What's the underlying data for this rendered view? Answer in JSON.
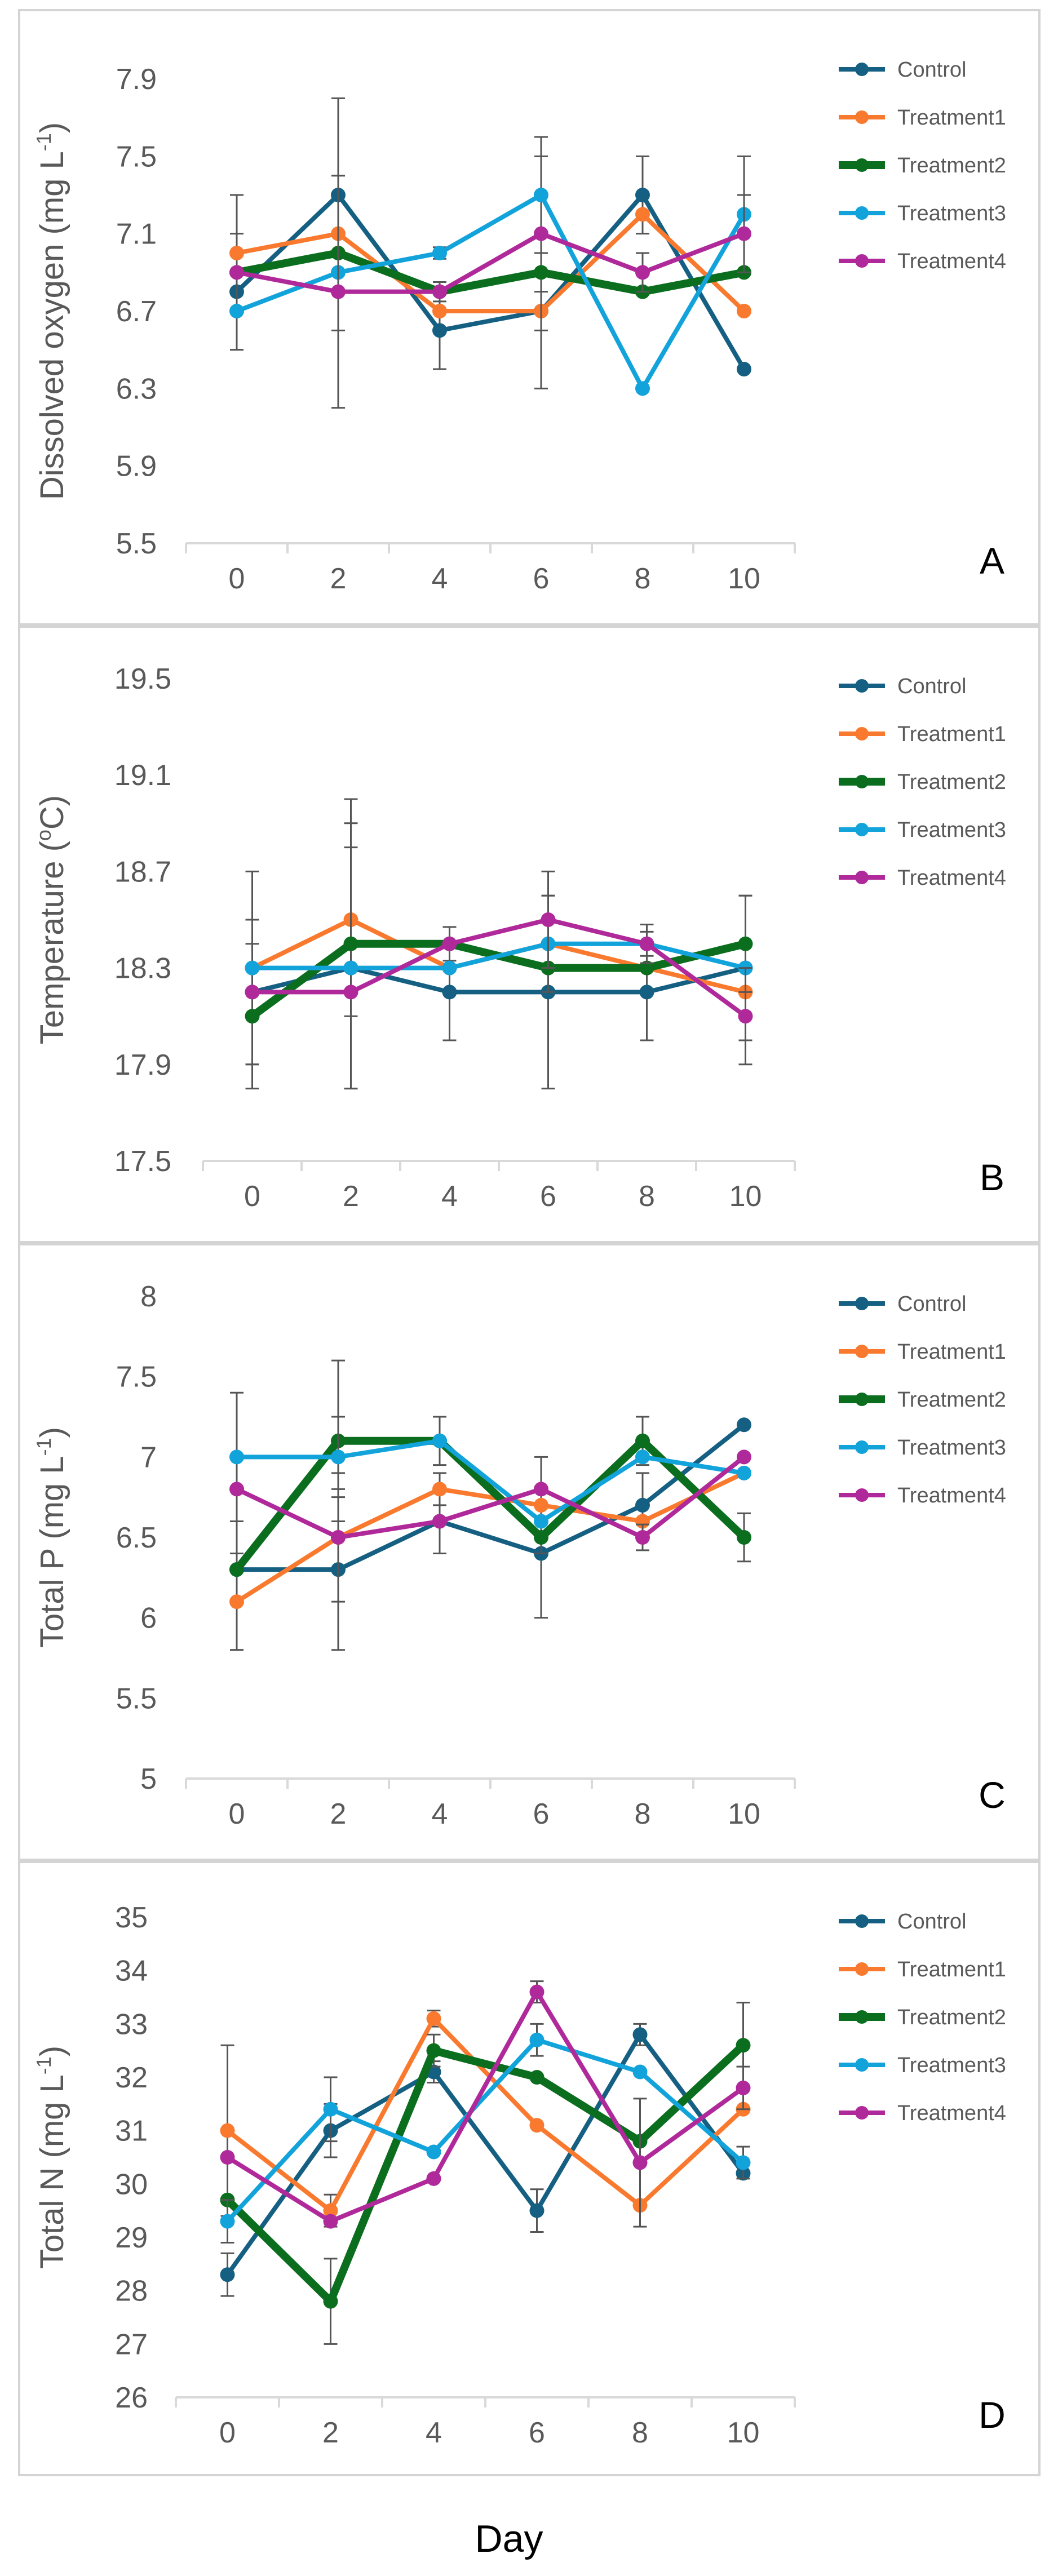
{
  "figure": {
    "xlabel": "Day"
  },
  "colors": {
    "Control": "#156082",
    "Treatment1": "#F97A2E",
    "Treatment2": "#0B6E1E",
    "Treatment3": "#12A3DB",
    "Treatment4": "#B0299A",
    "axis": "#D9D9D9",
    "error_bar": "#555555",
    "frame": "#D4D4D4",
    "text": "#595959"
  },
  "chart_data": [
    {
      "type": "line",
      "panel_letter": "A",
      "ylabel": "Dissolved oxygen (mg L",
      "ylabel_sup": "-1",
      "ylabel_end": ")",
      "x": [
        0,
        2,
        4,
        6,
        8,
        10
      ],
      "x_tick_labels": [
        "0",
        "2",
        "4",
        "6",
        "8",
        "10"
      ],
      "ylim": [
        5.5,
        7.9
      ],
      "y_ticks": [
        5.5,
        5.9,
        6.3,
        6.7,
        7.1,
        7.5,
        7.9
      ],
      "y_tick_labels": [
        "5.5",
        "5.9",
        "6.3",
        "6.7",
        "7.1",
        "7.5",
        "7.9"
      ],
      "legend_position": "right",
      "series": [
        {
          "name": "Control",
          "values": [
            6.8,
            7.3,
            6.6,
            6.7,
            7.3,
            6.4
          ],
          "errors": [
            0.3,
            0.5,
            0.2,
            0.1,
            0.2,
            0
          ]
        },
        {
          "name": "Treatment1",
          "values": [
            7.0,
            7.1,
            6.7,
            6.7,
            7.2,
            6.7
          ],
          "errors": [
            0.3,
            0.3,
            0,
            0,
            0,
            0
          ]
        },
        {
          "name": "Treatment2",
          "values": [
            6.9,
            7.0,
            6.8,
            6.9,
            6.8,
            6.9
          ],
          "errors": [
            0,
            0.4,
            0,
            0.6,
            0,
            0
          ]
        },
        {
          "name": "Treatment3",
          "values": [
            6.7,
            6.9,
            7.0,
            7.3,
            6.3,
            7.2
          ],
          "errors": [
            0.2,
            0,
            0.03,
            0.3,
            0,
            0.3
          ]
        },
        {
          "name": "Treatment4",
          "values": [
            6.9,
            6.8,
            6.8,
            7.1,
            6.9,
            7.1
          ],
          "errors": [
            0,
            0.6,
            0.05,
            0,
            0.1,
            0.2
          ]
        }
      ]
    },
    {
      "type": "line",
      "panel_letter": "B",
      "ylabel": "Temperature (",
      "ylabel_sup": "o",
      "ylabel_end": "C)",
      "x": [
        0,
        2,
        4,
        6,
        8,
        10
      ],
      "x_tick_labels": [
        "0",
        "2",
        "4",
        "6",
        "8",
        "10"
      ],
      "ylim": [
        17.5,
        19.5
      ],
      "y_ticks": [
        17.5,
        17.9,
        18.3,
        18.7,
        19.1,
        19.5
      ],
      "y_tick_labels": [
        "17.5",
        "17.9",
        "18.3",
        "18.7",
        "19.1",
        "19.5"
      ],
      "legend_position": "right",
      "series": [
        {
          "name": "Control",
          "values": [
            18.2,
            18.3,
            18.2,
            18.2,
            18.2,
            18.3
          ],
          "errors": [
            0.3,
            0.5,
            0.2,
            0.4,
            0.2,
            0.3
          ]
        },
        {
          "name": "Treatment1",
          "values": [
            18.3,
            18.5,
            18.3,
            18.4,
            18.3,
            18.2
          ],
          "errors": [
            0.4,
            0.4,
            0,
            0.2,
            0,
            0
          ]
        },
        {
          "name": "Treatment2",
          "values": [
            18.1,
            18.4,
            18.4,
            18.3,
            18.3,
            18.4
          ],
          "errors": [
            0.3,
            0.6,
            0.07,
            0,
            0,
            0.2
          ]
        },
        {
          "name": "Treatment3",
          "values": [
            18.3,
            18.3,
            18.3,
            18.4,
            18.4,
            18.3
          ],
          "errors": [
            0,
            0,
            0,
            0,
            0.05,
            0
          ]
        },
        {
          "name": "Treatment4",
          "values": [
            18.2,
            18.2,
            18.4,
            18.5,
            18.4,
            18.1
          ],
          "errors": [
            0,
            0,
            0,
            0.2,
            0.08,
            0.2
          ]
        }
      ]
    },
    {
      "type": "line",
      "panel_letter": "C",
      "ylabel": "Total P (mg L",
      "ylabel_sup": "-1",
      "ylabel_end": ")",
      "x": [
        0,
        2,
        4,
        6,
        8,
        10
      ],
      "x_tick_labels": [
        "0",
        "2",
        "4",
        "6",
        "8",
        "10"
      ],
      "ylim": [
        5,
        8
      ],
      "y_ticks": [
        5,
        5.5,
        6,
        6.5,
        7,
        7.5,
        8
      ],
      "y_tick_labels": [
        "5",
        "5.5",
        "6",
        "6.5",
        "7",
        "7.5",
        "8"
      ],
      "legend_position": "right",
      "series": [
        {
          "name": "Control",
          "values": [
            6.3,
            6.3,
            6.6,
            6.4,
            6.7,
            7.2
          ],
          "errors": [
            0.5,
            0.5,
            0.2,
            0.4,
            0.2,
            0
          ]
        },
        {
          "name": "Treatment1",
          "values": [
            6.1,
            6.5,
            6.8,
            6.7,
            6.6,
            6.9
          ],
          "errors": [
            0.3,
            0.4,
            0.1,
            0.3,
            0,
            0
          ]
        },
        {
          "name": "Treatment2",
          "values": [
            6.3,
            7.1,
            7.1,
            6.5,
            7.1,
            6.5
          ],
          "errors": [
            0,
            0.5,
            0,
            0,
            0.15,
            0.15
          ]
        },
        {
          "name": "Treatment3",
          "values": [
            7.0,
            7.0,
            7.1,
            6.6,
            7.0,
            6.9
          ],
          "errors": [
            0.4,
            0.25,
            0.15,
            0,
            0,
            0
          ]
        },
        {
          "name": "Treatment4",
          "values": [
            6.8,
            6.5,
            6.6,
            6.8,
            6.5,
            7.0
          ],
          "errors": [
            0,
            0,
            0,
            0,
            0.08,
            0
          ]
        }
      ]
    },
    {
      "type": "line",
      "panel_letter": "D",
      "ylabel": "Total N (mg L",
      "ylabel_sup": "-1",
      "ylabel_end": ")",
      "x": [
        0,
        2,
        4,
        6,
        8,
        10
      ],
      "x_tick_labels": [
        "0",
        "2",
        "4",
        "6",
        "8",
        "10"
      ],
      "ylim": [
        26,
        35
      ],
      "y_ticks": [
        26,
        27,
        28,
        29,
        30,
        31,
        32,
        33,
        34,
        35
      ],
      "y_tick_labels": [
        "26",
        "27",
        "28",
        "29",
        "30",
        "31",
        "32",
        "33",
        "34",
        "35"
      ],
      "legend_position": "right",
      "series": [
        {
          "name": "Control",
          "values": [
            28.3,
            31.0,
            32.1,
            29.5,
            32.8,
            30.2
          ],
          "errors": [
            0.4,
            0.5,
            0.2,
            0.4,
            0.2,
            0
          ]
        },
        {
          "name": "Treatment1",
          "values": [
            31.0,
            29.5,
            33.1,
            31.1,
            29.6,
            31.4
          ],
          "errors": [
            1.6,
            0.3,
            0.15,
            0,
            0,
            0
          ]
        },
        {
          "name": "Treatment2",
          "values": [
            29.7,
            27.8,
            32.5,
            32.0,
            30.8,
            32.6
          ],
          "errors": [
            0.8,
            0.8,
            0.3,
            0,
            0,
            0.8
          ]
        },
        {
          "name": "Treatment3",
          "values": [
            29.3,
            31.4,
            30.6,
            32.7,
            32.1,
            30.4
          ],
          "errors": [
            0.4,
            0.6,
            0,
            0.3,
            0,
            0.3
          ]
        },
        {
          "name": "Treatment4",
          "values": [
            30.5,
            29.3,
            30.1,
            33.6,
            30.4,
            31.8
          ],
          "errors": [
            0,
            0,
            0,
            0.2,
            1.2,
            0.4
          ]
        }
      ]
    }
  ]
}
